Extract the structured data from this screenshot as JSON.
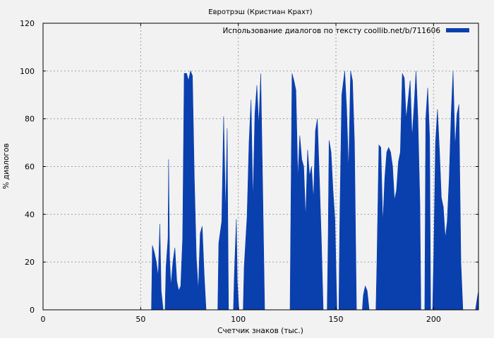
{
  "chart_data": {
    "type": "area",
    "title": "Евротрэш (Кристиан Крахт)",
    "xlabel": "Счетчик знаков (тыс.)",
    "ylabel": "% диалогов",
    "xlim": [
      0,
      223
    ],
    "ylim": [
      0,
      120
    ],
    "x_ticks": [
      "0",
      "50",
      "100",
      "150",
      "200"
    ],
    "y_ticks": [
      "0",
      "20",
      "40",
      "60",
      "80",
      "100",
      "120"
    ],
    "grid": true,
    "legend_position": "top-right",
    "series": [
      {
        "name": "Использование диалогов по тексту coollib.net/b/711606",
        "color": "#0a3fae",
        "points": [
          [
            0,
            0
          ],
          [
            55.5,
            0
          ],
          [
            56,
            27
          ],
          [
            57,
            24
          ],
          [
            58,
            20
          ],
          [
            59,
            14
          ],
          [
            59.8,
            36
          ],
          [
            60.5,
            8
          ],
          [
            61.5,
            0
          ],
          [
            62.5,
            0
          ],
          [
            63,
            18
          ],
          [
            64,
            30
          ],
          [
            64.3,
            63
          ],
          [
            64.8,
            22
          ],
          [
            65.5,
            10
          ],
          [
            66.5,
            20
          ],
          [
            67.5,
            26
          ],
          [
            68.5,
            12
          ],
          [
            69.5,
            8
          ],
          [
            70.5,
            10
          ],
          [
            71.5,
            30
          ],
          [
            72.3,
            99
          ],
          [
            73.5,
            99
          ],
          [
            74.5,
            96
          ],
          [
            75.5,
            100
          ],
          [
            76.5,
            98
          ],
          [
            77.5,
            55
          ],
          [
            78.5,
            22
          ],
          [
            79.5,
            8
          ],
          [
            80.5,
            32
          ],
          [
            81.5,
            35
          ],
          [
            82.5,
            15
          ],
          [
            83.5,
            0
          ],
          [
            89.5,
            0
          ],
          [
            90,
            28
          ],
          [
            91.5,
            37
          ],
          [
            92.5,
            81
          ],
          [
            93.5,
            40
          ],
          [
            94.3,
            76
          ],
          [
            95,
            0
          ],
          [
            97.5,
            0
          ],
          [
            98,
            15
          ],
          [
            99,
            38
          ],
          [
            99.5,
            12
          ],
          [
            100.3,
            0
          ],
          [
            102.5,
            0
          ],
          [
            103,
            18
          ],
          [
            104.5,
            39
          ],
          [
            105.5,
            70
          ],
          [
            106.5,
            88
          ],
          [
            107.5,
            45
          ],
          [
            108.5,
            82
          ],
          [
            109.5,
            94
          ],
          [
            110.5,
            77
          ],
          [
            111.5,
            99
          ],
          [
            112.5,
            50
          ],
          [
            113.5,
            0
          ],
          [
            126.5,
            0
          ],
          [
            127.5,
            99
          ],
          [
            128.5,
            96
          ],
          [
            129.5,
            92
          ],
          [
            130.5,
            55
          ],
          [
            131.5,
            73
          ],
          [
            132.5,
            63
          ],
          [
            133.5,
            60
          ],
          [
            134.5,
            38
          ],
          [
            135.5,
            67
          ],
          [
            136.5,
            56
          ],
          [
            137.5,
            60
          ],
          [
            138.5,
            46
          ],
          [
            139.5,
            75
          ],
          [
            140.5,
            80
          ],
          [
            141.5,
            56
          ],
          [
            142.5,
            30
          ],
          [
            143.5,
            0
          ],
          [
            145.5,
            0
          ],
          [
            146,
            30
          ],
          [
            146.5,
            71
          ],
          [
            147.5,
            66
          ],
          [
            148.5,
            50
          ],
          [
            149.5,
            38
          ],
          [
            150.5,
            0
          ],
          [
            151.5,
            0
          ],
          [
            152,
            40
          ],
          [
            153,
            90
          ],
          [
            154.5,
            100
          ],
          [
            155.5,
            84
          ],
          [
            156.5,
            58
          ],
          [
            157.5,
            100
          ],
          [
            158.5,
            96
          ],
          [
            159.5,
            70
          ],
          [
            160.5,
            0
          ],
          [
            163.5,
            0
          ],
          [
            164,
            6
          ],
          [
            165,
            10
          ],
          [
            166,
            8
          ],
          [
            167,
            0
          ],
          [
            170.5,
            0
          ],
          [
            171,
            20
          ],
          [
            172,
            69
          ],
          [
            173,
            68
          ],
          [
            174,
            36
          ],
          [
            175,
            55
          ],
          [
            176,
            66
          ],
          [
            177,
            68
          ],
          [
            178,
            66
          ],
          [
            179,
            60
          ],
          [
            180,
            46
          ],
          [
            181,
            50
          ],
          [
            182,
            62
          ],
          [
            183,
            66
          ],
          [
            184,
            99
          ],
          [
            185,
            97
          ],
          [
            186,
            80
          ],
          [
            187,
            88
          ],
          [
            188,
            96
          ],
          [
            189,
            72
          ],
          [
            190,
            85
          ],
          [
            191,
            100
          ],
          [
            192,
            80
          ],
          [
            193,
            45
          ],
          [
            193.5,
            0
          ],
          [
            195.5,
            0
          ],
          [
            196,
            80
          ],
          [
            197,
            93
          ],
          [
            198,
            72
          ],
          [
            198.5,
            0
          ],
          [
            199.5,
            0
          ],
          [
            200,
            20
          ],
          [
            201,
            70
          ],
          [
            202,
            84
          ],
          [
            203,
            67
          ],
          [
            204,
            47
          ],
          [
            205,
            43
          ],
          [
            206,
            30
          ],
          [
            207,
            37
          ],
          [
            208,
            55
          ],
          [
            209,
            82
          ],
          [
            210,
            100
          ],
          [
            211,
            68
          ],
          [
            212,
            82
          ],
          [
            213,
            86
          ],
          [
            214,
            20
          ],
          [
            215,
            0
          ],
          [
            221.5,
            0
          ],
          [
            222.2,
            4
          ],
          [
            223,
            8
          ]
        ]
      }
    ]
  }
}
